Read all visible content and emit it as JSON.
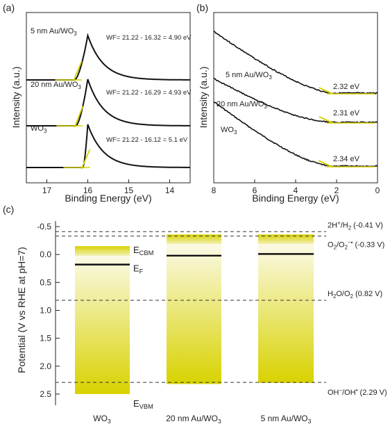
{
  "chart_data": [
    {
      "panel": "(a)",
      "type": "line",
      "xlabel": "Binding Energy (eV)",
      "ylabel": "Intensity (a.u.)",
      "xlim": [
        17.5,
        13.5
      ],
      "x_reversed": true,
      "xticks": [
        17,
        16,
        15,
        14
      ],
      "xtick_labels": [
        "17",
        "16",
        "15",
        "14"
      ],
      "series": [
        {
          "name": "5 nm Au/WO3",
          "label_main": "5 nm Au/WO",
          "label_sub": "3",
          "annotation": "WF= 21.22 - 16.32 = 4.90 eV",
          "onset": 16.32,
          "peak": 16.0
        },
        {
          "name": "20 nm Au/WO3",
          "label_main": "20 nm Au/WO",
          "label_sub": "3",
          "annotation": "WF= 21.22 - 16.29 = 4.93 eV",
          "onset": 16.29,
          "peak": 16.0
        },
        {
          "name": "WO3",
          "label_main": "WO",
          "label_sub": "3",
          "annotation": "WF= 21.22 - 16.12 = 5.1 eV",
          "onset": 16.12,
          "peak": 16.0
        }
      ]
    },
    {
      "panel": "(b)",
      "type": "line",
      "xlabel": "Binding Energy (eV)",
      "ylabel": "Intensity (a.u.)",
      "xlim": [
        8,
        0
      ],
      "x_reversed": true,
      "xticks": [
        8,
        6,
        4,
        2,
        0
      ],
      "xtick_labels": [
        "8",
        "6",
        "4",
        "2",
        "0"
      ],
      "series": [
        {
          "name": "5 nm Au/WO3",
          "label_main": "5 nm Au/WO",
          "label_sub": "3",
          "annotation": "2.32 eV",
          "vbm": 2.32
        },
        {
          "name": "20 nm Au/WO3",
          "label_main": "20 nm Au/WO",
          "label_sub": "3",
          "annotation": "2.31 eV",
          "vbm": 2.31
        },
        {
          "name": "WO3",
          "label_main": "WO",
          "label_sub": "3",
          "annotation": "2.34 eV",
          "vbm": 2.34
        }
      ]
    },
    {
      "panel": "(c)",
      "type": "bar",
      "ylabel": "Potential (V vs RHE at pH=7)",
      "ylim": [
        2.7,
        -0.6
      ],
      "y_reversed": true,
      "yticks": [
        -0.5,
        0.0,
        0.5,
        1.0,
        1.5,
        2.0,
        2.5
      ],
      "ytick_labels": [
        "-0.5",
        "0.0",
        "0.5",
        "1.0",
        "1.5",
        "2.0",
        "2.5"
      ],
      "categories": [
        {
          "main": "WO",
          "sub": "3"
        },
        {
          "main": "20 nm Au/WO",
          "sub": "3"
        },
        {
          "main": "5 nm Au/WO",
          "sub": "3"
        }
      ],
      "bands": [
        {
          "cbm": -0.15,
          "vbm": 2.5,
          "ef": 0.18
        },
        {
          "cbm": -0.36,
          "vbm": 2.32,
          "ef": 0.02
        },
        {
          "cbm": -0.36,
          "vbm": 2.3,
          "ef": -0.01
        }
      ],
      "band_labels": {
        "cbm_main": "E",
        "cbm_sub": "CBM",
        "ef_main": "E",
        "ef_sub": "F",
        "vbm_main": "E",
        "vbm_sub": "VBM"
      },
      "reference_levels": [
        {
          "value": -0.41,
          "parts": [
            {
              "t": "2H"
            },
            {
              "t": "+",
              "sup": true
            },
            {
              "t": "/H"
            },
            {
              "t": "2",
              "sub": true
            },
            {
              "t": " (-0.41 V)"
            }
          ]
        },
        {
          "value": -0.33,
          "parts": [
            {
              "t": "O"
            },
            {
              "t": "2",
              "sub": true
            },
            {
              "t": "/O"
            },
            {
              "t": "2",
              "sub": true
            },
            {
              "t": "−•",
              "sup": true
            },
            {
              "t": " (-0.33 V)"
            }
          ]
        },
        {
          "value": 0.82,
          "parts": [
            {
              "t": "H"
            },
            {
              "t": "2",
              "sub": true
            },
            {
              "t": "O/O"
            },
            {
              "t": "2",
              "sub": true
            },
            {
              "t": " (0.82 V)"
            }
          ]
        },
        {
          "value": 2.29,
          "parts": [
            {
              "t": "OH"
            },
            {
              "t": "−",
              "sup": true
            },
            {
              "t": "/OH"
            },
            {
              "t": "•",
              "sup": true
            },
            {
              "t": " (2.29 V)"
            }
          ]
        }
      ],
      "colors": {
        "band": "#d8d200",
        "band_light": "#fbfae6",
        "line": "#111111"
      }
    }
  ]
}
